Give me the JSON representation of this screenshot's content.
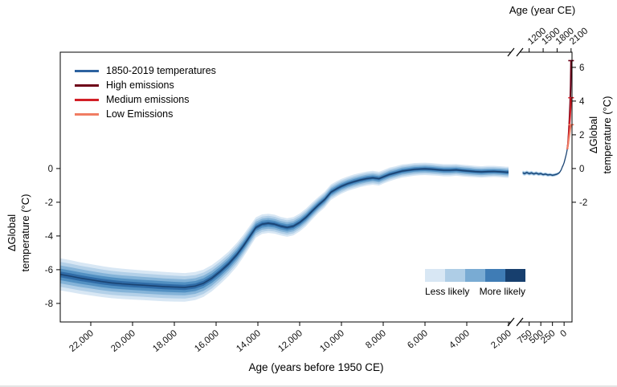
{
  "axes": {
    "bottom_label": "Age (years before 1950 CE)",
    "top_label": "Age (year CE)",
    "y_label_line1": "ΔGlobal",
    "y_label_line2": "temperature (°C)"
  },
  "legend": {
    "items": [
      {
        "label": "1850-2019 temperatures",
        "color": "#2d629f"
      },
      {
        "label": "High emissions",
        "color": "#6e0018"
      },
      {
        "label": "Medium emissions",
        "color": "#d21f26"
      },
      {
        "label": "Low Emissions",
        "color": "#f07d63"
      }
    ]
  },
  "colorbar": {
    "less_label": "Less likely",
    "more_label": "More likely",
    "colors": [
      "#d8e7f4",
      "#aecde6",
      "#79abd3",
      "#3f7cb5",
      "#173f6e"
    ]
  },
  "chart_data": {
    "type": "area",
    "title": "",
    "xlabel": "Age (years before 1950 CE)",
    "xlabel_top": "Age (year CE)",
    "ylabel": "ΔGlobal temperature (°C)",
    "grid": false,
    "legend_position": "top-left",
    "x_bottom": {
      "axis_break": true,
      "segments": [
        {
          "domain": [
            23462,
            2000
          ],
          "ticks": [
            22000,
            20000,
            18000,
            16000,
            14000,
            12000,
            10000,
            8000,
            6000,
            4000,
            2000
          ],
          "tick_labels": [
            "22,000",
            "20,000",
            "18,000",
            "16,000",
            "14,000",
            "12,000",
            "10,000",
            "8,000",
            "6,000",
            "4,000",
            "2,000"
          ]
        },
        {
          "domain": [
            900,
            -170
          ],
          "ticks": [
            750,
            500,
            250,
            0
          ],
          "tick_labels": [
            "750",
            "500",
            "250",
            "0"
          ]
        }
      ]
    },
    "x_top": {
      "ticks_bp": [
        750,
        450,
        150,
        -150
      ],
      "tick_labels": [
        "1200",
        "1500",
        "1800",
        "2100"
      ]
    },
    "y": {
      "domain": [
        -9.1,
        6.9
      ],
      "ticks_left": [
        0,
        -2,
        -4,
        -6,
        -8
      ],
      "ticks_right": [
        6,
        4,
        2,
        0,
        -2
      ]
    },
    "band_fractions": [
      1,
      0.78,
      0.56,
      0.36,
      0.18
    ],
    "band_colors": [
      "#d8e7f4",
      "#b3d0e8",
      "#84b3d8",
      "#5290c2",
      "#2f6ba6"
    ],
    "line_color": "#1b4473",
    "reconstruction": [
      [
        23450,
        -6.28,
        0.95
      ],
      [
        23000,
        -6.38,
        0.95
      ],
      [
        22500,
        -6.5,
        0.94
      ],
      [
        22000,
        -6.6,
        0.93
      ],
      [
        21500,
        -6.7,
        0.92
      ],
      [
        21000,
        -6.78,
        0.91
      ],
      [
        20500,
        -6.84,
        0.9
      ],
      [
        20000,
        -6.88,
        0.89
      ],
      [
        19500,
        -6.92,
        0.88
      ],
      [
        19000,
        -6.96,
        0.88
      ],
      [
        18500,
        -7.0,
        0.87
      ],
      [
        18000,
        -7.03,
        0.86
      ],
      [
        17500,
        -7.05,
        0.85
      ],
      [
        17000,
        -6.97,
        0.83
      ],
      [
        16600,
        -6.8,
        0.81
      ],
      [
        16200,
        -6.5,
        0.78
      ],
      [
        15800,
        -6.1,
        0.75
      ],
      [
        15400,
        -5.65,
        0.72
      ],
      [
        15000,
        -5.1,
        0.7
      ],
      [
        14700,
        -4.6,
        0.66
      ],
      [
        14400,
        -4.05,
        0.63
      ],
      [
        14100,
        -3.5,
        0.6
      ],
      [
        13800,
        -3.3,
        0.58
      ],
      [
        13500,
        -3.25,
        0.57
      ],
      [
        13200,
        -3.3,
        0.56
      ],
      [
        12900,
        -3.42,
        0.55
      ],
      [
        12600,
        -3.5,
        0.55
      ],
      [
        12300,
        -3.42,
        0.54
      ],
      [
        12000,
        -3.2,
        0.53
      ],
      [
        11700,
        -2.9,
        0.52
      ],
      [
        11400,
        -2.52,
        0.5
      ],
      [
        11100,
        -2.16,
        0.48
      ],
      [
        10800,
        -1.84,
        0.47
      ],
      [
        10500,
        -1.4,
        0.46
      ],
      [
        10200,
        -1.18,
        0.45
      ],
      [
        10000,
        -1.05,
        0.44
      ],
      [
        9700,
        -0.9,
        0.43
      ],
      [
        9400,
        -0.78,
        0.43
      ],
      [
        9100,
        -0.68,
        0.42
      ],
      [
        8800,
        -0.6,
        0.42
      ],
      [
        8500,
        -0.55,
        0.41
      ],
      [
        8200,
        -0.6,
        0.41
      ],
      [
        8000,
        -0.5,
        0.4
      ],
      [
        7700,
        -0.35,
        0.4
      ],
      [
        7400,
        -0.25,
        0.39
      ],
      [
        7100,
        -0.15,
        0.39
      ],
      [
        6800,
        -0.1,
        0.38
      ],
      [
        6500,
        -0.05,
        0.38
      ],
      [
        6200,
        -0.03,
        0.37
      ],
      [
        6000,
        -0.02,
        0.37
      ],
      [
        5700,
        -0.04,
        0.37
      ],
      [
        5400,
        -0.07,
        0.36
      ],
      [
        5100,
        -0.1,
        0.36
      ],
      [
        4800,
        -0.1,
        0.36
      ],
      [
        4500,
        -0.08,
        0.35
      ],
      [
        4200,
        -0.12,
        0.35
      ],
      [
        3900,
        -0.15,
        0.35
      ],
      [
        3600,
        -0.18,
        0.34
      ],
      [
        3300,
        -0.2,
        0.34
      ],
      [
        3000,
        -0.18,
        0.34
      ],
      [
        2700,
        -0.17,
        0.33
      ],
      [
        2400,
        -0.19,
        0.33
      ],
      [
        2100,
        -0.22,
        0.33
      ],
      [
        2000,
        -0.22,
        0.33
      ]
    ],
    "common_era": [
      [
        890,
        -0.25,
        0.14
      ],
      [
        850,
        -0.3,
        0.14
      ],
      [
        800,
        -0.24,
        0.13
      ],
      [
        750,
        -0.3,
        0.13
      ],
      [
        700,
        -0.26,
        0.13
      ],
      [
        650,
        -0.32,
        0.12
      ],
      [
        600,
        -0.27,
        0.12
      ],
      [
        550,
        -0.33,
        0.12
      ],
      [
        500,
        -0.3,
        0.12
      ],
      [
        450,
        -0.36,
        0.11
      ],
      [
        400,
        -0.33,
        0.11
      ],
      [
        350,
        -0.38,
        0.11
      ],
      [
        300,
        -0.36,
        0.1
      ],
      [
        250,
        -0.4,
        0.1
      ],
      [
        200,
        -0.37,
        0.1
      ],
      [
        150,
        -0.33,
        0.09
      ],
      [
        120,
        -0.28,
        0.08
      ],
      [
        100,
        -0.24,
        0.07
      ],
      [
        80,
        -0.16,
        0.06
      ],
      [
        60,
        -0.06,
        0.05
      ],
      [
        40,
        0.08,
        0.04
      ],
      [
        20,
        0.2,
        0.04
      ],
      [
        0,
        0.34,
        0.03
      ],
      [
        -20,
        0.55,
        0.03
      ],
      [
        -40,
        0.78,
        0.02
      ],
      [
        -55,
        0.95,
        0.02
      ],
      [
        -69,
        1.15,
        0.02
      ]
    ],
    "projections": [
      {
        "name": "High emissions",
        "color": "#6e0018",
        "points": [
          [
            -69,
            1.15
          ],
          [
            -85,
            1.5
          ],
          [
            -100,
            2.1
          ],
          [
            -115,
            2.9
          ],
          [
            -130,
            3.9
          ],
          [
            -140,
            4.9
          ],
          [
            -150,
            6.4
          ]
        ]
      },
      {
        "name": "Medium emissions",
        "color": "#d21f26",
        "points": [
          [
            -69,
            1.15
          ],
          [
            -85,
            1.45
          ],
          [
            -100,
            1.9
          ],
          [
            -115,
            2.5
          ],
          [
            -130,
            3.1
          ],
          [
            -140,
            3.6
          ],
          [
            -150,
            4.2
          ]
        ]
      },
      {
        "name": "Low Emissions",
        "color": "#f07d63",
        "points": [
          [
            -69,
            1.15
          ],
          [
            -85,
            1.4
          ],
          [
            -100,
            1.7
          ],
          [
            -115,
            2.0
          ],
          [
            -130,
            2.3
          ],
          [
            -140,
            2.45
          ],
          [
            -150,
            2.6
          ]
        ]
      }
    ]
  }
}
